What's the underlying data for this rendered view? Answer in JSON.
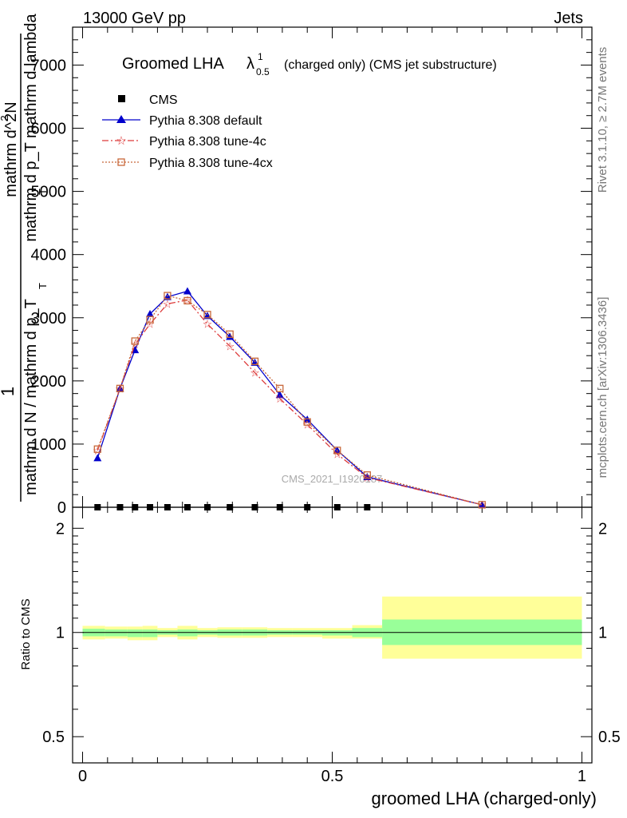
{
  "header": {
    "left": "13000 GeV pp",
    "right": "Jets"
  },
  "side_labels": {
    "rivet": "Rivet 3.1.10, ≥ 2.7M events",
    "mcplots": "mcplots.cern.ch [arXiv:1306.3436]"
  },
  "watermark": "CMS_2021_I1920187",
  "ratio_ylabel": "Ratio to CMS",
  "colors": {
    "cms": "#000000",
    "default": "#0000cc",
    "tune4c": "#dd3b3b",
    "tune4cx": "#c8683a",
    "band_inner": "#99ff99",
    "band_outer": "#ffff99"
  },
  "chart_data": [
    {
      "type": "line",
      "title_main": "Groomed LHA",
      "title_sym": "λ",
      "title_sup": "1",
      "title_sub": "0.5",
      "title_rest": "(charged only) (CMS jet substructure)",
      "ylabel": {
        "one": "1",
        "left": "mathrm d N / mathrm d p_T",
        "sub_left": "T",
        "num": "mathrm d^2N",
        "sup": "2",
        "den": "mathrm d p_T mathrm d lambda",
        "sub_den": "T"
      },
      "xlim": [
        -0.02,
        1.02
      ],
      "ylim": [
        0,
        7600
      ],
      "yticks": [
        {
          "v": 0,
          "label": "0"
        },
        {
          "v": 1000,
          "label": "1000"
        },
        {
          "v": 2000,
          "label": "2000"
        },
        {
          "v": 3000,
          "label": "3000"
        },
        {
          "v": 4000,
          "label": "4000"
        },
        {
          "v": 5000,
          "label": "5000"
        },
        {
          "v": 6000,
          "label": "6000"
        },
        {
          "v": 7000,
          "label": "7000"
        }
      ],
      "series": [
        {
          "name": "CMS",
          "style": "cms",
          "x": [
            0.03,
            0.075,
            0.105,
            0.135,
            0.17,
            0.21,
            0.25,
            0.295,
            0.345,
            0.395,
            0.45,
            0.51,
            0.57
          ],
          "y": [
            0,
            0,
            0,
            0,
            0,
            0,
            0,
            0,
            0,
            0,
            0,
            0,
            0
          ]
        },
        {
          "name": "Pythia 8.308 default",
          "style": "default",
          "x": [
            0.03,
            0.075,
            0.105,
            0.135,
            0.17,
            0.21,
            0.25,
            0.295,
            0.345,
            0.395,
            0.45,
            0.51,
            0.57,
            0.8
          ],
          "y": [
            780,
            1880,
            2490,
            3060,
            3330,
            3420,
            3030,
            2700,
            2290,
            1780,
            1390,
            900,
            480,
            40
          ]
        },
        {
          "name": "Pythia 8.308 tune-4c",
          "style": "tune4c",
          "x": [
            0.03,
            0.075,
            0.105,
            0.135,
            0.17,
            0.21,
            0.25,
            0.295,
            0.345,
            0.395,
            0.45,
            0.51,
            0.57,
            0.8
          ],
          "y": [
            900,
            1880,
            2580,
            2900,
            3220,
            3280,
            2900,
            2550,
            2130,
            1720,
            1310,
            840,
            470,
            40
          ]
        },
        {
          "name": "Pythia 8.308 tune-4cx",
          "style": "tune4cx",
          "x": [
            0.03,
            0.075,
            0.105,
            0.135,
            0.17,
            0.21,
            0.25,
            0.295,
            0.345,
            0.395,
            0.45,
            0.51,
            0.57,
            0.8
          ],
          "y": [
            920,
            1880,
            2630,
            2970,
            3350,
            3270,
            3050,
            2740,
            2310,
            1880,
            1350,
            900,
            510,
            40
          ]
        }
      ]
    },
    {
      "type": "area",
      "ylabel": "Ratio to CMS",
      "xlabel": "groomed LHA (charged-only)",
      "xlim": [
        -0.02,
        1.02
      ],
      "ylim": [
        0.42,
        2.3
      ],
      "log_y": true,
      "xticks": [
        {
          "v": 0,
          "label": "0"
        },
        {
          "v": 0.5,
          "label": "0.5"
        },
        {
          "v": 1,
          "label": "1"
        }
      ],
      "yticks": [
        {
          "v": 0.5,
          "label": "0.5"
        },
        {
          "v": 1,
          "label": "1"
        },
        {
          "v": 2,
          "label": "2"
        }
      ],
      "reference": 1,
      "bands": [
        {
          "x0": 0.0,
          "x1": 0.045,
          "inner": [
            0.975,
            1.025
          ],
          "outer": [
            0.955,
            1.045
          ]
        },
        {
          "x0": 0.045,
          "x1": 0.09,
          "inner": [
            0.975,
            1.02
          ],
          "outer": [
            0.96,
            1.04
          ]
        },
        {
          "x0": 0.09,
          "x1": 0.12,
          "inner": [
            0.97,
            1.02
          ],
          "outer": [
            0.95,
            1.04
          ]
        },
        {
          "x0": 0.12,
          "x1": 0.15,
          "inner": [
            0.97,
            1.02
          ],
          "outer": [
            0.95,
            1.045
          ]
        },
        {
          "x0": 0.15,
          "x1": 0.19,
          "inner": [
            0.985,
            1.015
          ],
          "outer": [
            0.97,
            1.03
          ]
        },
        {
          "x0": 0.19,
          "x1": 0.23,
          "inner": [
            0.975,
            1.02
          ],
          "outer": [
            0.955,
            1.045
          ]
        },
        {
          "x0": 0.23,
          "x1": 0.27,
          "inner": [
            0.985,
            1.015
          ],
          "outer": [
            0.97,
            1.03
          ]
        },
        {
          "x0": 0.27,
          "x1": 0.32,
          "inner": [
            0.98,
            1.02
          ],
          "outer": [
            0.965,
            1.035
          ]
        },
        {
          "x0": 0.32,
          "x1": 0.37,
          "inner": [
            0.98,
            1.02
          ],
          "outer": [
            0.965,
            1.035
          ]
        },
        {
          "x0": 0.37,
          "x1": 0.42,
          "inner": [
            0.985,
            1.015
          ],
          "outer": [
            0.97,
            1.03
          ]
        },
        {
          "x0": 0.42,
          "x1": 0.48,
          "inner": [
            0.985,
            1.015
          ],
          "outer": [
            0.97,
            1.03
          ]
        },
        {
          "x0": 0.48,
          "x1": 0.54,
          "inner": [
            0.98,
            1.015
          ],
          "outer": [
            0.96,
            1.03
          ]
        },
        {
          "x0": 0.54,
          "x1": 0.6,
          "inner": [
            0.97,
            1.03
          ],
          "outer": [
            0.96,
            1.05
          ]
        },
        {
          "x0": 0.6,
          "x1": 1.0,
          "inner": [
            0.92,
            1.09
          ],
          "outer": [
            0.84,
            1.27
          ]
        }
      ]
    }
  ]
}
